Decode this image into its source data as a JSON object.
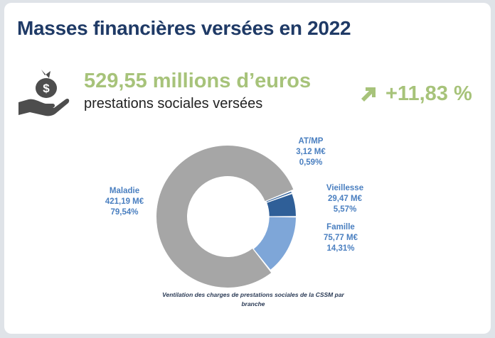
{
  "header": {
    "title": "Masses financières versées en 2022"
  },
  "summary": {
    "amount": "529,55 millions d’euros",
    "amount_label": "prestations sociales versées",
    "trend": "+11,83 %",
    "icons": {
      "amount": "money-hand-icon",
      "trend": "arrow-up-right-icon"
    }
  },
  "colors": {
    "title": "#1f3a66",
    "accent": "#a7c37a",
    "label": "#4a7fc0"
  },
  "chart_data": {
    "type": "pie",
    "variant": "donut",
    "caption": "Ventilation des charges de prestations sociales de la CSSM par branche",
    "segments": [
      {
        "name": "AT/MP",
        "value": 3.12,
        "value_label": "3,12 M€",
        "share": "0,59%",
        "color": "#2f5f98"
      },
      {
        "name": "Vieillesse",
        "value": 29.47,
        "value_label": "29,47 M€",
        "share": "5,57%",
        "color": "#2f5f98"
      },
      {
        "name": "Famille",
        "value": 75.77,
        "value_label": "75,77 M€",
        "share": "14,31%",
        "color": "#7ea6d8"
      },
      {
        "name": "Maladie",
        "value": 421.19,
        "value_label": "421,19 M€",
        "share": "79,54%",
        "color": "#a6a6a6"
      }
    ]
  }
}
